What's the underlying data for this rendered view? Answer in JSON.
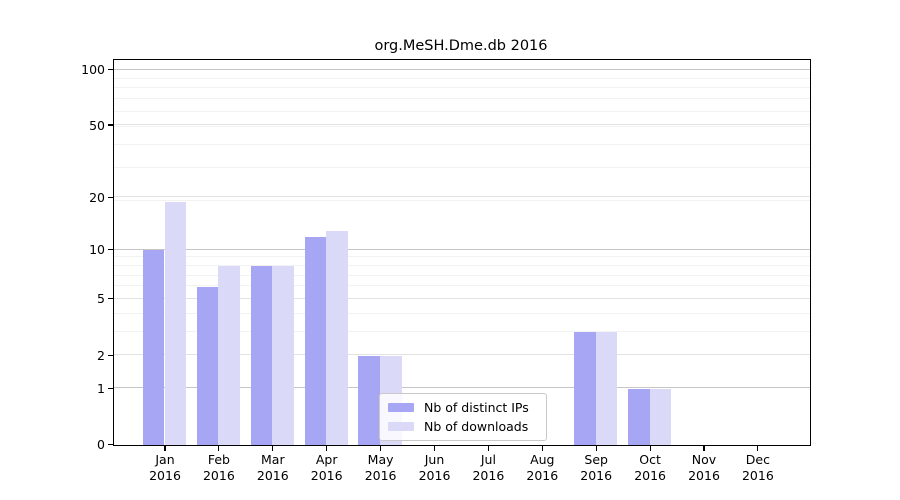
{
  "title": "org.MeSH.Dme.db 2016",
  "colors": {
    "distinct_ips": "#a6a6f4",
    "downloads": "#dadaf8",
    "grid_major": "#c6c6c6",
    "grid_tick": "#e3e3e3",
    "grid_minor": "#f2f2f2",
    "axis": "#000000",
    "legend_border": "#c9c9c9"
  },
  "legend": {
    "items": [
      {
        "label": "Nb of distinct IPs",
        "color": "#a6a6f4"
      },
      {
        "label": "Nb of downloads",
        "color": "#dadaf8"
      }
    ]
  },
  "chart_data": {
    "type": "bar",
    "title": "org.MeSH.Dme.db 2016",
    "categories": [
      "Jan",
      "Feb",
      "Mar",
      "Apr",
      "May",
      "Jun",
      "Jul",
      "Aug",
      "Sep",
      "Oct",
      "Nov",
      "Dec"
    ],
    "category_year": "2016",
    "series": [
      {
        "name": "Nb of distinct IPs",
        "key": "distinct_ips",
        "color": "#a6a6f4",
        "values": [
          10,
          6,
          8,
          12,
          2,
          0,
          0,
          0,
          3,
          1,
          0,
          0
        ]
      },
      {
        "name": "Nb of downloads",
        "key": "downloads",
        "color": "#dadaf8",
        "values": [
          19,
          8,
          8,
          13,
          2,
          0,
          0,
          0,
          3,
          1,
          0,
          0
        ]
      }
    ],
    "yscale": "log10(1+x)",
    "yticks": [
      0,
      1,
      2,
      5,
      10,
      20,
      50,
      100
    ],
    "yticks_major": [
      1,
      10,
      100
    ],
    "ylim": [
      0,
      101
    ],
    "grid": true,
    "legend_position": "lower center"
  }
}
